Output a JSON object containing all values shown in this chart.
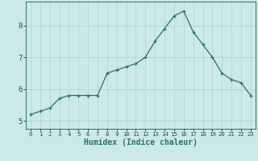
{
  "x": [
    0,
    1,
    2,
    3,
    4,
    5,
    6,
    7,
    8,
    9,
    10,
    11,
    12,
    13,
    14,
    15,
    16,
    17,
    18,
    19,
    20,
    21,
    22,
    23
  ],
  "y": [
    5.2,
    5.3,
    5.4,
    5.7,
    5.8,
    5.8,
    5.8,
    5.8,
    6.5,
    6.6,
    6.7,
    6.8,
    7.0,
    7.5,
    7.9,
    8.3,
    8.45,
    7.8,
    7.4,
    7.0,
    6.5,
    6.3,
    6.2,
    5.8
  ],
  "xlabel": "Humidex (Indice chaleur)",
  "bg_color": "#cce8e8",
  "grid_color": "#b0d0d0",
  "line_color": "#2a7070",
  "xlim": [
    -0.5,
    23.5
  ],
  "ylim": [
    4.75,
    8.75
  ],
  "yticks": [
    5,
    6,
    7,
    8
  ],
  "xticks": [
    0,
    1,
    2,
    3,
    4,
    5,
    6,
    7,
    8,
    9,
    10,
    11,
    12,
    13,
    14,
    15,
    16,
    17,
    18,
    19,
    20,
    21,
    22,
    23
  ],
  "xlabel_fontsize": 7,
  "tick_fontsize": 6.5,
  "xtick_fontsize": 5.2
}
